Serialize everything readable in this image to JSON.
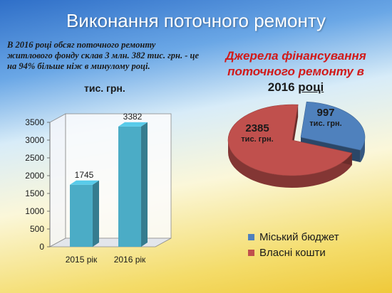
{
  "slide": {
    "title": "Виконання поточного ремонту",
    "intro": "В 2016 році обсяг поточного ремонту житлового фонду склав  3 млн. 382 тис. грн. - це на 94% більше ніж в минулому році."
  },
  "colors": {
    "bar": "#4bacc6",
    "city_budget": "#4f81bd",
    "own_funds": "#c0504d"
  },
  "chart_data": [
    {
      "type": "bar",
      "title": "тис. грн.",
      "categories": [
        "2015 рік",
        "2016 рік"
      ],
      "values": [
        1745,
        3382
      ],
      "ylim": [
        0,
        3500
      ],
      "yticks": [
        0,
        500,
        1000,
        1500,
        2000,
        2500,
        3000,
        3500
      ],
      "grid": false,
      "style": "3d"
    },
    {
      "type": "pie",
      "title_main": "Джерела фінансування поточного ремонту в",
      "title_year": "2016",
      "title_end": "році",
      "slices": [
        {
          "name": "Міський бюджет",
          "value": 997,
          "unit": "тис. грн."
        },
        {
          "name": "Власні кошти",
          "value": 2385,
          "unit": "тис. грн."
        }
      ],
      "legend": "bottom",
      "style": "3d"
    }
  ]
}
